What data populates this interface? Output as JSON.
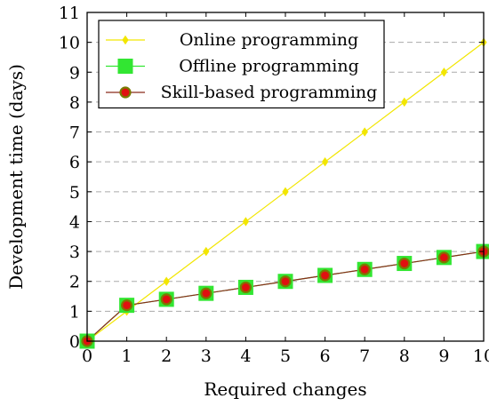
{
  "chart_data": {
    "type": "line",
    "xlabel": "Required changes",
    "ylabel": "Development time (days)",
    "xlim": [
      0,
      10
    ],
    "ylim": [
      0,
      11
    ],
    "x_ticks": [
      "0",
      "1",
      "2",
      "3",
      "4",
      "5",
      "6",
      "7",
      "8",
      "9",
      "10"
    ],
    "y_ticks": [
      "0",
      "1",
      "2",
      "3",
      "4",
      "5",
      "6",
      "7",
      "8",
      "9",
      "10",
      "11"
    ],
    "grid": "horizontal dashed",
    "legend_position": "top-left",
    "x": [
      0,
      1,
      2,
      3,
      4,
      5,
      6,
      7,
      8,
      9,
      10
    ],
    "series": [
      {
        "name": "Online programming",
        "values": [
          0,
          1,
          2,
          3,
          4,
          5,
          6,
          7,
          8,
          9,
          10
        ],
        "line_color": "#f2e600",
        "marker": "diamond",
        "marker_color": "#f2e600"
      },
      {
        "name": "Offline programming",
        "values": [
          0,
          1.2,
          1.4,
          1.6,
          1.8,
          2.0,
          2.2,
          2.4,
          2.6,
          2.8,
          3.0
        ],
        "line_color": "#32e632",
        "marker": "square",
        "marker_color": "#32e632"
      },
      {
        "name": "Skill-based programming",
        "values": [
          0,
          1.2,
          1.4,
          1.6,
          1.8,
          2.0,
          2.2,
          2.4,
          2.6,
          2.8,
          3.0
        ],
        "line_color": "#8b2a1a",
        "marker": "circle",
        "marker_color": "#e01010",
        "marker_edge_color": "#7a7a00"
      }
    ]
  }
}
